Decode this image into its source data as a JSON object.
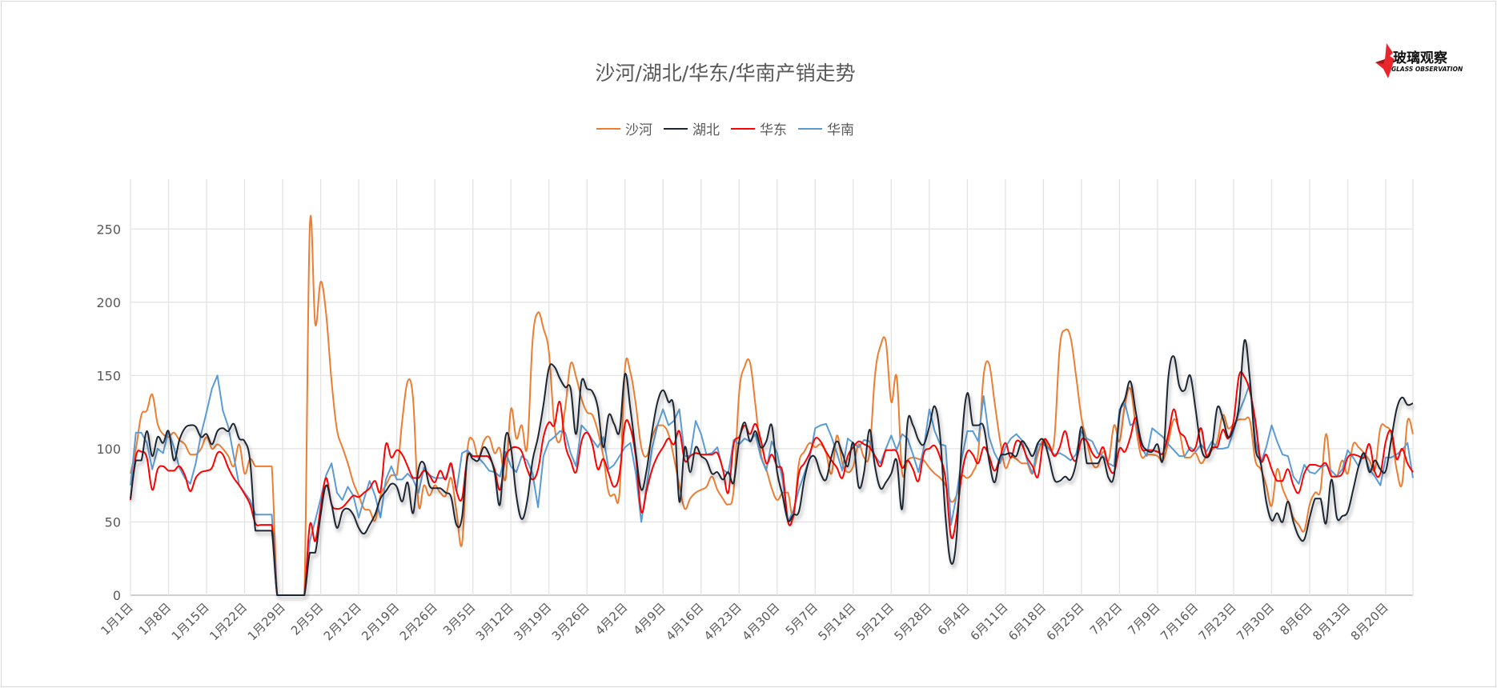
{
  "chart_data": {
    "type": "line",
    "title": "沙河/湖北/华东/华南产销走势",
    "xlabel": "",
    "ylabel": "",
    "ylim": [
      0,
      284
    ],
    "yticks": [
      0,
      50,
      100,
      150,
      200,
      250
    ],
    "grid": true,
    "legend_position": "top",
    "x_tick_labels": [
      "1月1日",
      "1月8日",
      "1月15日",
      "1月22日",
      "1月29日",
      "2月5日",
      "2月12日",
      "2月19日",
      "2月26日",
      "3月5日",
      "3月12日",
      "3月19日",
      "3月26日",
      "4月2日",
      "4月9日",
      "4月16日",
      "4月23日",
      "4月30日",
      "5月7日",
      "5月14日",
      "5月21日",
      "5月28日",
      "6月4日",
      "6月11日",
      "6月18日",
      "6月25日",
      "7月2日",
      "7月9日",
      "7月16日",
      "7月23日",
      "7月30日",
      "8月6日",
      "8月13日",
      "8月20日"
    ],
    "x_start": "1月1日",
    "x_end": "8月25日",
    "series": [
      {
        "name": "沙河",
        "color": "#ED7D31",
        "smooth": true,
        "values": [
          83,
          100,
          123,
          126,
          137,
          117,
          110,
          108,
          111,
          106,
          103,
          96,
          96,
          100,
          108,
          100,
          103,
          100,
          95,
          88,
          103,
          83,
          93,
          88,
          88,
          88,
          88,
          0,
          0,
          0,
          0,
          0,
          0,
          252,
          185,
          214,
          192,
          146,
          113,
          101,
          90,
          77,
          68,
          59,
          58,
          51,
          68,
          75,
          82,
          82,
          119,
          146,
          134,
          62,
          75,
          68,
          75,
          70,
          68,
          80,
          57,
          35,
          99,
          106,
          94,
          105,
          108,
          97,
          100,
          79,
          127,
          107,
          116,
          101,
          174,
          193,
          182,
          166,
          116,
          105,
          128,
          158,
          149,
          134,
          125,
          123,
          112,
          95,
          70,
          69,
          70,
          155,
          152,
          130,
          101,
          95,
          108,
          116,
          116,
          110,
          94,
          75,
          59,
          66,
          70,
          72,
          74,
          81,
          72,
          66,
          62,
          72,
          138,
          156,
          159,
          130,
          97,
          86,
          73,
          65,
          70,
          70,
          53,
          90,
          98,
          104,
          101,
          103,
          97,
          83,
          109,
          90,
          84,
          88,
          103,
          94,
          97,
          150,
          170,
          173,
          132,
          149,
          84,
          92,
          94,
          93,
          92,
          87,
          83,
          80,
          75,
          64,
          68,
          81,
          80,
          84,
          97,
          150,
          158,
          132,
          106,
          87,
          94,
          93,
          90,
          90,
          83,
          97,
          106,
          101,
          106,
          169,
          181,
          176,
          150,
          121,
          105,
          90,
          88,
          98,
          92,
          116,
          105,
          130,
          141,
          115,
          95,
          96,
          96,
          95,
          92,
          105,
          120,
          112,
          94,
          94,
          97,
          90,
          95,
          99,
          105,
          123,
          114,
          117,
          120,
          120,
          119,
          92,
          86,
          75,
          61,
          86,
          73,
          64,
          53,
          48,
          44,
          62,
          70,
          72,
          110,
          81,
          81,
          92,
          83,
          103,
          101,
          97,
          92,
          86,
          114,
          115,
          110,
          86,
          76,
          119,
          110
        ]
      },
      {
        "name": "湖北",
        "color": "#1F2630",
        "smooth": true,
        "values": [
          66,
          92,
          92,
          112,
          95,
          108,
          104,
          112,
          92,
          106,
          114,
          116,
          115,
          108,
          110,
          103,
          112,
          114,
          112,
          117,
          107,
          105,
          92,
          44,
          44,
          44,
          44,
          0,
          0,
          0,
          0,
          0,
          0,
          29,
          29,
          55,
          75,
          62,
          46,
          57,
          59,
          55,
          46,
          42,
          48,
          55,
          66,
          71,
          76,
          74,
          64,
          77,
          56,
          86,
          90,
          75,
          73,
          73,
          70,
          67,
          48,
          53,
          94,
          93,
          92,
          101,
          96,
          84,
          62,
          108,
          101,
          68,
          52,
          64,
          92,
          108,
          130,
          155,
          156,
          148,
          142,
          141,
          110,
          146,
          141,
          139,
          128,
          101,
          123,
          117,
          112,
          151,
          127,
          97,
          72,
          86,
          112,
          132,
          140,
          132,
          127,
          64,
          101,
          84,
          101,
          95,
          92,
          83,
          84,
          79,
          84,
          77,
          105,
          118,
          105,
          112,
          101,
          105,
          116,
          84,
          68,
          51,
          55,
          57,
          79,
          93,
          94,
          83,
          79,
          95,
          105,
          97,
          88,
          104,
          74,
          84,
          113,
          88,
          73,
          77,
          83,
          92,
          59,
          118,
          116,
          106,
          103,
          115,
          129,
          108,
          53,
          22,
          39,
          106,
          138,
          116,
          116,
          115,
          92,
          77,
          94,
          96,
          97,
          95,
          105,
          101,
          95,
          104,
          106,
          94,
          79,
          78,
          81,
          79,
          90,
          115,
          90,
          90,
          90,
          94,
          80,
          82,
          123,
          134,
          146,
          125,
          105,
          99,
          98,
          103,
          93,
          149,
          163,
          143,
          140,
          150,
          127,
          101,
          94,
          101,
          128,
          121,
          108,
          114,
          130,
          174,
          147,
          101,
          90,
          64,
          51,
          56,
          50,
          64,
          50,
          40,
          38,
          53,
          66,
          66,
          49,
          79,
          53,
          54,
          57,
          72,
          88,
          97,
          84,
          92,
          86,
          85,
          106,
          127,
          135,
          130,
          131
        ]
      },
      {
        "name": "华东",
        "color": "#FF0000",
        "smooth": true,
        "values": [
          65,
          95,
          98,
          94,
          72,
          86,
          88,
          85,
          85,
          88,
          82,
          71,
          80,
          84,
          85,
          87,
          97,
          96,
          87,
          80,
          75,
          69,
          62,
          49,
          48,
          48,
          48,
          0,
          0,
          0,
          0,
          0,
          0,
          48,
          37,
          60,
          80,
          62,
          59,
          60,
          64,
          68,
          67,
          70,
          73,
          78,
          71,
          103,
          94,
          99,
          96,
          88,
          80,
          80,
          85,
          82,
          77,
          85,
          79,
          90,
          71,
          66,
          94,
          95,
          95,
          95,
          94,
          86,
          72,
          94,
          100,
          101,
          98,
          86,
          79,
          86,
          108,
          118,
          116,
          132,
          103,
          92,
          84,
          105,
          111,
          103,
          86,
          93,
          83,
          74,
          83,
          117,
          114,
          94,
          57,
          72,
          86,
          95,
          101,
          107,
          103,
          112,
          92,
          95,
          97,
          96,
          96,
          96,
          97,
          86,
          70,
          103,
          108,
          116,
          110,
          117,
          106,
          90,
          96,
          88,
          84,
          50,
          55,
          83,
          90,
          97,
          107,
          105,
          98,
          92,
          87,
          80,
          95,
          101,
          105,
          103,
          101,
          95,
          88,
          99,
          99,
          98,
          87,
          92,
          86,
          78,
          97,
          100,
          102,
          94,
          79,
          40,
          53,
          83,
          98,
          96,
          90,
          101,
          95,
          85,
          94,
          104,
          94,
          105,
          103,
          94,
          88,
          81,
          105,
          103,
          95,
          101,
          112,
          97,
          92,
          106,
          105,
          97,
          94,
          101,
          88,
          84,
          100,
          98,
          108,
          121,
          101,
          99,
          99,
          98,
          97,
          110,
          127,
          112,
          108,
          99,
          101,
          114,
          95,
          101,
          101,
          113,
          107,
          119,
          150,
          149,
          139,
          119,
          92,
          96,
          86,
          78,
          78,
          86,
          75,
          70,
          83,
          89,
          89,
          88,
          90,
          81,
          81,
          83,
          94,
          96,
          95,
          94,
          103,
          84,
          83,
          105,
          112,
          93,
          100,
          90,
          84
        ]
      },
      {
        "name": "华南",
        "color": "#5B9BD5",
        "smooth": false,
        "values": [
          75,
          111,
          111,
          104,
          86,
          100,
          97,
          112,
          101,
          87,
          80,
          76,
          90,
          110,
          125,
          141,
          150,
          126,
          115,
          95,
          75,
          70,
          65,
          55,
          55,
          55,
          55,
          0,
          0,
          0,
          0,
          0,
          0,
          37,
          51,
          66,
          82,
          90,
          70,
          65,
          74,
          68,
          53,
          66,
          78,
          68,
          53,
          79,
          88,
          79,
          79,
          83,
          79,
          70,
          87,
          82,
          80,
          80,
          80,
          90,
          71,
          97,
          99,
          95,
          94,
          90,
          85,
          84,
          81,
          98,
          88,
          84,
          95,
          92,
          83,
          60,
          95,
          105,
          108,
          112,
          111,
          97,
          88,
          116,
          112,
          106,
          101,
          108,
          86,
          89,
          95,
          101,
          104,
          83,
          50,
          75,
          101,
          116,
          127,
          116,
          119,
          127,
          95,
          95,
          119,
          110,
          96,
          97,
          101,
          86,
          83,
          106,
          103,
          107,
          105,
          110,
          94,
          85,
          105,
          97,
          79,
          50,
          58,
          72,
          83,
          94,
          114,
          116,
          117,
          108,
          97,
          85,
          107,
          104,
          101,
          106,
          105,
          95,
          90,
          100,
          109,
          99,
          110,
          107,
          96,
          84,
          101,
          127,
          112,
          103,
          102,
          48,
          68,
          94,
          112,
          112,
          105,
          136,
          108,
          97,
          90,
          101,
          107,
          110,
          106,
          92,
          83,
          103,
          103,
          100,
          96,
          97,
          95,
          92,
          96,
          112,
          107,
          105,
          97,
          95,
          90,
          88,
          127,
          131,
          116,
          118,
          101,
          95,
          114,
          111,
          108,
          103,
          99,
          95,
          95,
          101,
          98,
          103,
          98,
          105,
          100,
          100,
          101,
          112,
          125,
          134,
          145,
          106,
          90,
          101,
          116,
          105,
          96,
          95,
          81,
          76,
          89,
          84,
          83,
          87,
          89,
          85,
          81,
          86,
          99,
          94,
          88,
          97,
          86,
          81,
          75,
          94,
          94,
          96,
          99,
          104,
          80
        ]
      }
    ]
  },
  "logo": {
    "text_cn": "玻璃观察",
    "text_en": "GLASS OBSERVATION",
    "brand_color": "#E8262B"
  }
}
